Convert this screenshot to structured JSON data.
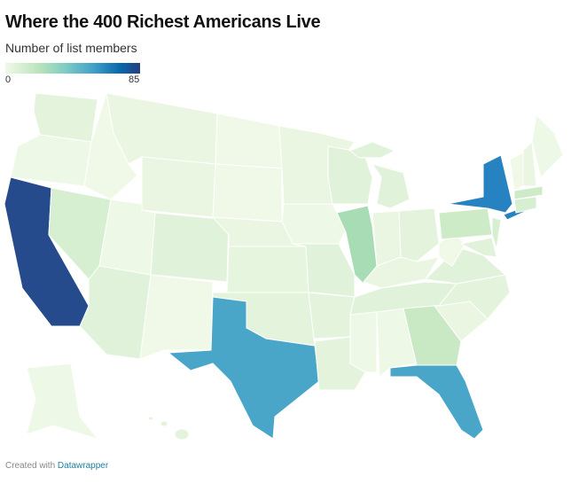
{
  "header": {
    "title": "Where the 400 Richest Americans Live",
    "subtitle": "Number of list members"
  },
  "legend": {
    "min": "0",
    "max": "85",
    "colors": [
      "#f0f9e8",
      "#bae4bc",
      "#7bccc4",
      "#43a2ca",
      "#0868ac",
      "#253f80"
    ]
  },
  "map": {
    "state_colors": {
      "WA": "#e4f4dc",
      "OR": "#eef8e6",
      "CA": "#264b8c",
      "NV": "#d6efd0",
      "ID": "#f0f9e8",
      "MT": "#eaf6e2",
      "WY": "#eaf6e2",
      "UT": "#eef8e6",
      "AZ": "#e0f3da",
      "CO": "#e0f3da",
      "NM": "#f0f9e8",
      "ND": "#f0f9e8",
      "SD": "#f0f9e8",
      "NE": "#eaf6e2",
      "KS": "#e6f5de",
      "OK": "#e4f4dc",
      "TX": "#4aa6c8",
      "MN": "#eaf6e2",
      "IA": "#eef8e6",
      "MO": "#e0f3da",
      "AR": "#e4f4dc",
      "LA": "#e4f4dc",
      "WI": "#e0f3da",
      "IL": "#a8dcb5",
      "MI": "#e0f3da",
      "MIU": "#e0f3da",
      "IN": "#eaf6e2",
      "OH": "#e4f4dc",
      "KY": "#eaf6e2",
      "TN": "#e0f3da",
      "MS": "#eef8e6",
      "AL": "#eef8e6",
      "GA": "#c9e9c4",
      "FL": "#4aa6c8",
      "SC": "#eaf6e2",
      "NC": "#e4f4dc",
      "VA": "#e0f3da",
      "WV": "#f0f9e8",
      "PA": "#cdebc6",
      "NY": "#2682c0",
      "NJ": "#d6efd0",
      "MD": "#e0f3da",
      "VT": "#f0f9e8",
      "NH": "#eaf6e2",
      "ME": "#eef8e6",
      "MA": "#cdebc6",
      "CT": "#d6efd0",
      "AK": "#eef8e6",
      "HI": "#e4f4dc"
    }
  },
  "footer": {
    "prefix": "Created with",
    "link": "Datawrapper"
  }
}
